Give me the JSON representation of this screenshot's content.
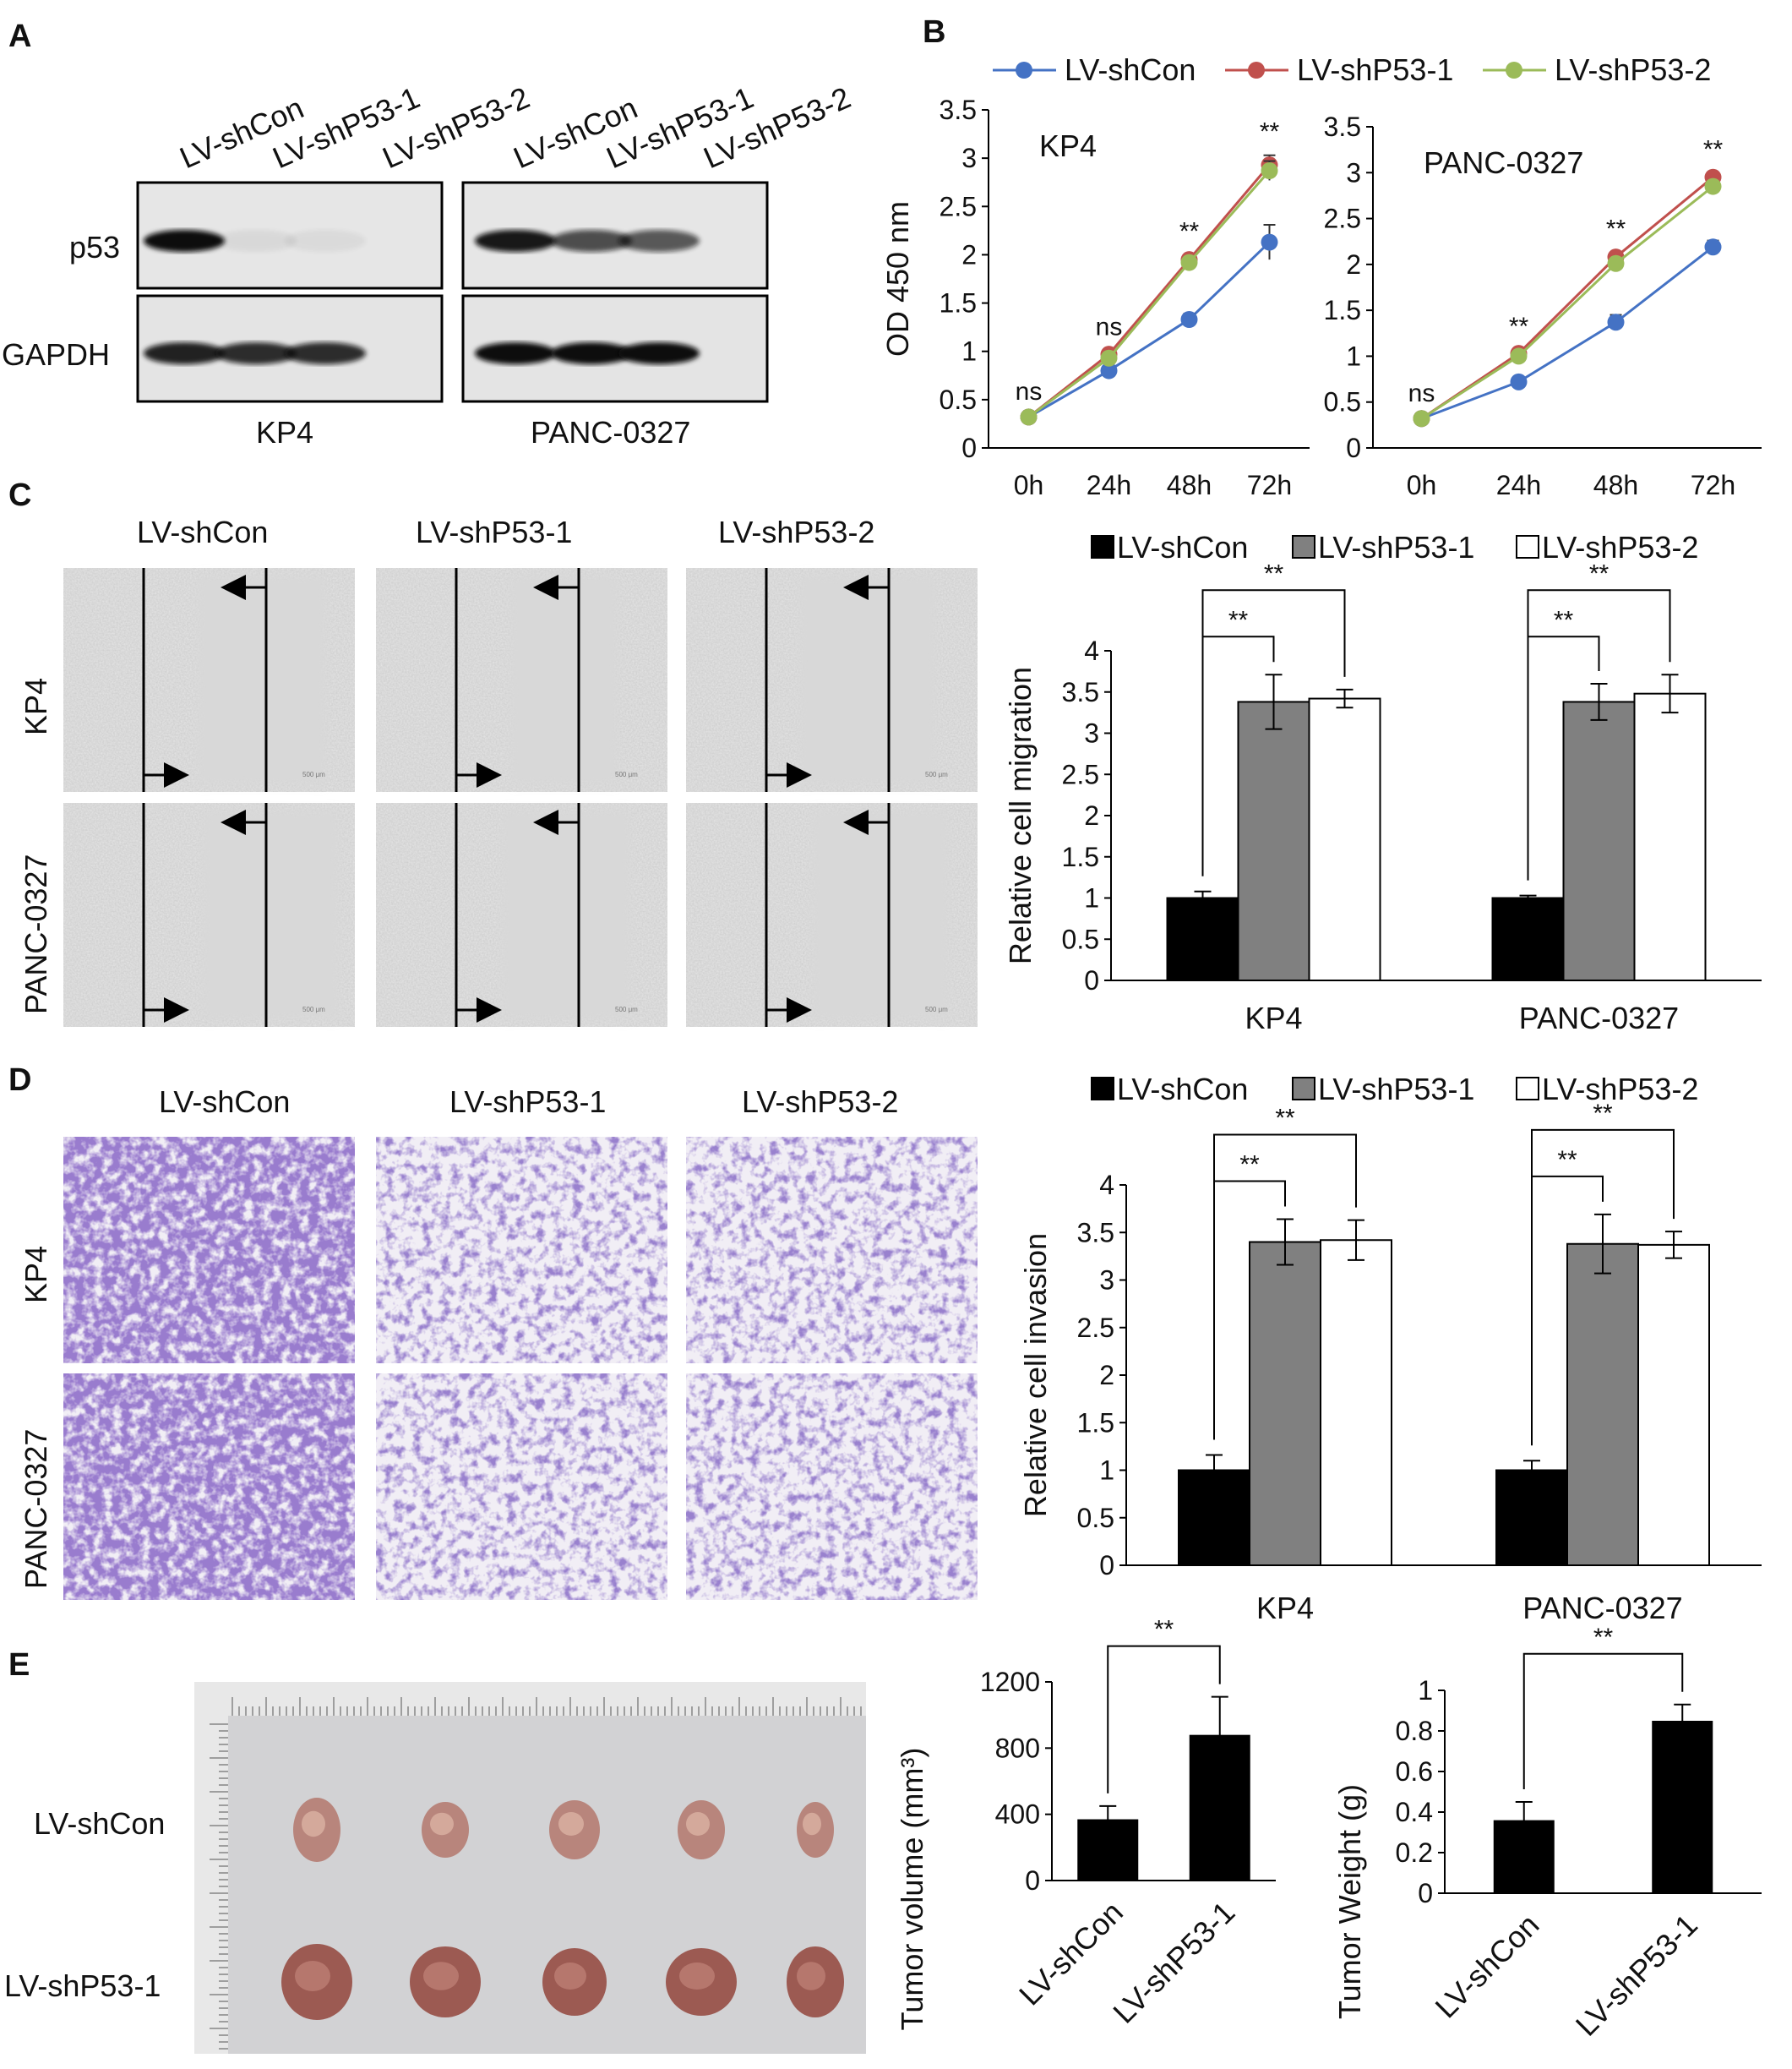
{
  "panel_letters": [
    "A",
    "B",
    "C",
    "D",
    "E"
  ],
  "panelA": {
    "lane_labels_kp4": [
      "LV-shCon",
      "LV-shP53-1",
      "LV-shP53-2"
    ],
    "lane_labels_panc": [
      "LV-shCon",
      "LV-shP53-1",
      "LV-shP53-2"
    ],
    "row_labels": [
      "p53",
      "GAPDH"
    ],
    "group_labels": [
      "KP4",
      "PANC-0327"
    ],
    "band_intensity": {
      "KP4": {
        "p53": [
          1.0,
          0.06,
          0.05
        ],
        "GAPDH": [
          0.9,
          0.85,
          0.85
        ]
      },
      "PANC-0327": {
        "p53": [
          0.95,
          0.7,
          0.65
        ],
        "GAPDH": [
          1.0,
          1.0,
          1.0
        ]
      }
    }
  },
  "panelC": {
    "col_labels": [
      "LV-shCon",
      "LV-shP53-1",
      "LV-shP53-2"
    ],
    "row_labels": [
      "KP4",
      "PANC-0327"
    ],
    "scale_text": "500 μm"
  },
  "panelD": {
    "col_labels": [
      "LV-shCon",
      "LV-shP53-1",
      "LV-shP53-2"
    ],
    "row_labels": [
      "KP4",
      "PANC-0327"
    ]
  },
  "panelE": {
    "row_labels": [
      "LV-shCon",
      "LV-shP53-1"
    ]
  },
  "colors": {
    "shCon": "#4472C4",
    "shP53_1": "#C0504D",
    "shP53_2": "#9BBB59",
    "bar_black": "#000000",
    "bar_gray": "#808080",
    "bar_white": "#FFFFFF",
    "crystal_violet": "#5a3aa8"
  },
  "chart_data": [
    {
      "id": "B1",
      "type": "line",
      "title": "KP4",
      "ylabel": "OD 450 nm",
      "categories": [
        "0h",
        "24h",
        "48h",
        "72h"
      ],
      "ylim": [
        0,
        3.5
      ],
      "yticks": [
        "0",
        "0.5",
        "1",
        "1.5",
        "2",
        "2.5",
        "3",
        "3.5"
      ],
      "series": [
        {
          "name": "LV-shCon",
          "values": [
            0.32,
            0.8,
            1.33,
            2.13
          ],
          "errors": [
            0.02,
            0.04,
            0.06,
            0.18
          ]
        },
        {
          "name": "LV-shP53-1",
          "values": [
            0.32,
            0.97,
            1.95,
            2.93
          ],
          "errors": [
            0.02,
            0.04,
            0.05,
            0.1
          ]
        },
        {
          "name": "LV-shP53-2",
          "values": [
            0.32,
            0.93,
            1.92,
            2.87
          ],
          "errors": [
            0.02,
            0.04,
            0.05,
            0.1
          ]
        }
      ],
      "annotations": [
        "ns",
        "ns",
        "**",
        "**"
      ]
    },
    {
      "id": "B2",
      "type": "line",
      "title": "PANC-0327",
      "ylabel": "",
      "categories": [
        "0h",
        "24h",
        "48h",
        "72h"
      ],
      "ylim": [
        0,
        3.5
      ],
      "yticks": [
        "0",
        "0.5",
        "1",
        "1.5",
        "2",
        "2.5",
        "3",
        "3.5"
      ],
      "series": [
        {
          "name": "LV-shCon",
          "values": [
            0.32,
            0.72,
            1.37,
            2.19
          ],
          "errors": [
            0.02,
            0.04,
            0.08,
            0.07
          ]
        },
        {
          "name": "LV-shP53-1",
          "values": [
            0.32,
            1.03,
            2.08,
            2.95
          ],
          "errors": [
            0.02,
            0.04,
            0.05,
            0.05
          ]
        },
        {
          "name": "LV-shP53-2",
          "values": [
            0.32,
            1.0,
            2.01,
            2.85
          ],
          "errors": [
            0.02,
            0.04,
            0.05,
            0.05
          ]
        }
      ],
      "annotations": [
        "ns",
        "**",
        "**",
        "**"
      ]
    },
    {
      "id": "C",
      "type": "bar",
      "ylabel": "Relative  cell migration",
      "categories": [
        "KP4",
        "PANC-0327"
      ],
      "ylim": [
        0,
        4
      ],
      "yticks": [
        "0",
        "0.5",
        "1",
        "1.5",
        "2",
        "2.5",
        "3",
        "3.5",
        "4"
      ],
      "series": [
        {
          "name": "LV-shCon",
          "values": [
            1.0,
            1.0
          ],
          "errors": [
            0.08,
            0.03
          ]
        },
        {
          "name": "LV-shP53-1",
          "values": [
            3.38,
            3.38
          ],
          "errors": [
            0.33,
            0.22
          ]
        },
        {
          "name": "LV-shP53-2",
          "values": [
            3.42,
            3.48
          ],
          "errors": [
            0.11,
            0.23
          ]
        }
      ],
      "significance": "**"
    },
    {
      "id": "D",
      "type": "bar",
      "ylabel": "Relative  cell invasion",
      "categories": [
        "KP4",
        "PANC-0327"
      ],
      "ylim": [
        0,
        4
      ],
      "yticks": [
        "0",
        "0.5",
        "1",
        "1.5",
        "2",
        "2.5",
        "3",
        "3.5",
        "4"
      ],
      "series": [
        {
          "name": "LV-shCon",
          "values": [
            1.0,
            1.0
          ],
          "errors": [
            0.16,
            0.1
          ]
        },
        {
          "name": "LV-shP53-1",
          "values": [
            3.4,
            3.38
          ],
          "errors": [
            0.24,
            0.31
          ]
        },
        {
          "name": "LV-shP53-2",
          "values": [
            3.42,
            3.37
          ],
          "errors": [
            0.21,
            0.14
          ]
        }
      ],
      "significance": "**"
    },
    {
      "id": "E1",
      "type": "bar",
      "ylabel": "Tumor  volume  (mm³)",
      "categories": [
        "LV-shCon",
        "LV-shP53-1"
      ],
      "ylim": [
        0,
        1200
      ],
      "yticks": [
        "0",
        "400",
        "800",
        "1200"
      ],
      "values": [
        370,
        880
      ],
      "errors": [
        80,
        230
      ],
      "significance": "**"
    },
    {
      "id": "E2",
      "type": "bar",
      "ylabel": "Tumor  Weight  (g)",
      "categories": [
        "LV-shCon",
        "LV-shP53-1"
      ],
      "ylim": [
        0,
        1
      ],
      "yticks": [
        "0",
        "0.2",
        "0.4",
        "0.6",
        "0.8",
        "1"
      ],
      "values": [
        0.36,
        0.85
      ],
      "errors": [
        0.09,
        0.08
      ],
      "significance": "**"
    }
  ]
}
